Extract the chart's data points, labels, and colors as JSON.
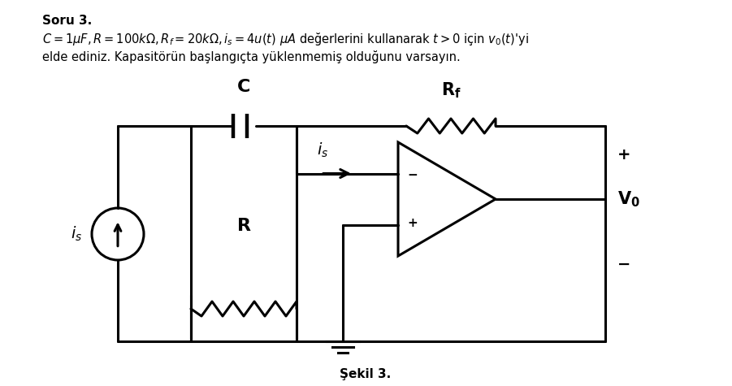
{
  "bg_color": "#ffffff",
  "line_color": "#000000",
  "lw": 2.2,
  "fig_w": 9.01,
  "fig_h": 4.75,
  "text_header1": "Soru 3.",
  "text_header2_plain": " değerlerini kullanarak ",
  "text_header2_end": "'yi",
  "text_header3": "elde ediniz. Kapasitörün başlangıçta yüklenmemiş olduğunu varsayın.",
  "caption": "Şekil 3."
}
